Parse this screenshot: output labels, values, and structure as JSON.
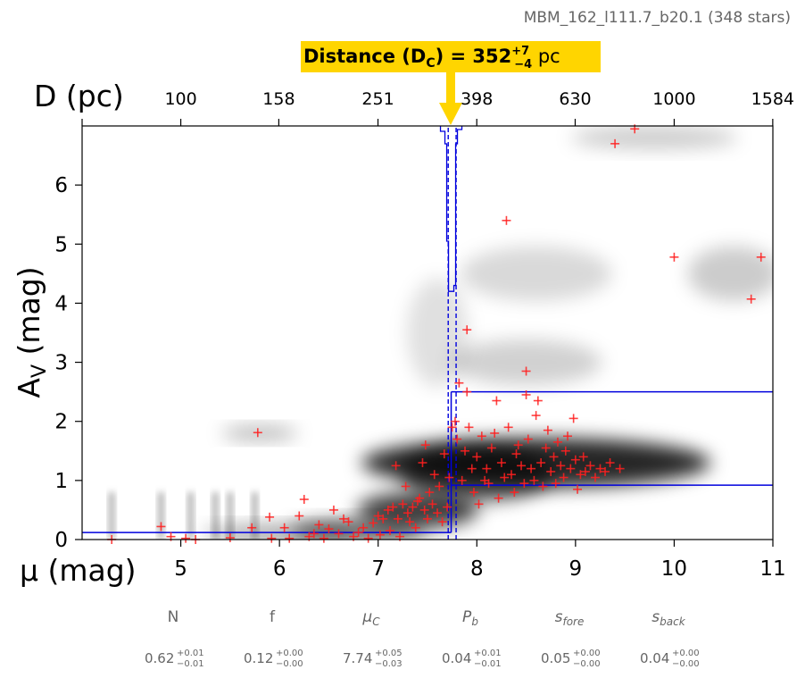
{
  "chart_data": {
    "type": "scatter",
    "title": "MBM_162_l111.7_b20.1 (348 stars)",
    "distance_label": "Distance (D",
    "distance_sub": "C",
    "distance_eq": ") = 352",
    "distance_sup": "+7",
    "distance_subscript": "−4",
    "distance_unit": " pc",
    "top_axis_label": "D (pc)",
    "top_ticks": [
      "100",
      "158",
      "251",
      "398",
      "630",
      "1000",
      "1584"
    ],
    "ylabel": "A",
    "ylabel_sub": "V",
    "ylabel_unit": " (mag)",
    "xlabel": "μ (mag)",
    "xlim": [
      4.0,
      11.0
    ],
    "ylim": [
      0,
      7.0
    ],
    "x_ticks": [
      "5",
      "6",
      "7",
      "8",
      "9",
      "10",
      "11"
    ],
    "y_ticks": [
      "0",
      "1",
      "2",
      "3",
      "4",
      "5",
      "6"
    ],
    "distance_modulus": 7.74,
    "distance_modulus_err": [
      7.71,
      7.79
    ],
    "foreground_extinction": 0.12,
    "background_extinction_low": 0.92,
    "background_extinction_high": 2.5,
    "colors": {
      "points": "#ff2020",
      "model": "#0000dd",
      "arrow": "#ffd500"
    },
    "parameters": [
      {
        "name": "N",
        "value": "0.62",
        "plus": "+0.01",
        "minus": "−0.01"
      },
      {
        "name": "f",
        "value": "0.12",
        "plus": "+0.00",
        "minus": "−0.00"
      },
      {
        "name": "μC",
        "value": "7.74",
        "plus": "+0.05",
        "minus": "−0.03"
      },
      {
        "name": "Pb",
        "value": "0.04",
        "plus": "+0.01",
        "minus": "−0.01"
      },
      {
        "name": "sfore",
        "value": "0.05",
        "plus": "+0.00",
        "minus": "−0.00"
      },
      {
        "name": "sback",
        "value": "0.04",
        "plus": "+0.00",
        "minus": "−0.00"
      }
    ],
    "points": [
      [
        4.3,
        0.0
      ],
      [
        4.8,
        0.22
      ],
      [
        4.9,
        0.05
      ],
      [
        5.05,
        0.02
      ],
      [
        5.15,
        0.0
      ],
      [
        5.5,
        0.03
      ],
      [
        5.72,
        0.2
      ],
      [
        5.78,
        1.81
      ],
      [
        5.9,
        0.38
      ],
      [
        5.92,
        0.02
      ],
      [
        6.05,
        0.2
      ],
      [
        6.1,
        0.02
      ],
      [
        6.2,
        0.4
      ],
      [
        6.25,
        0.68
      ],
      [
        6.3,
        0.05
      ],
      [
        6.35,
        0.1
      ],
      [
        6.4,
        0.25
      ],
      [
        6.45,
        0.02
      ],
      [
        6.5,
        0.18
      ],
      [
        6.55,
        0.5
      ],
      [
        6.6,
        0.1
      ],
      [
        6.65,
        0.35
      ],
      [
        6.7,
        0.3
      ],
      [
        6.75,
        0.05
      ],
      [
        6.8,
        0.12
      ],
      [
        6.85,
        0.2
      ],
      [
        6.9,
        0.02
      ],
      [
        6.95,
        0.28
      ],
      [
        7.0,
        0.4
      ],
      [
        7.02,
        0.08
      ],
      [
        7.05,
        0.35
      ],
      [
        7.1,
        0.5
      ],
      [
        7.12,
        0.15
      ],
      [
        7.15,
        0.55
      ],
      [
        7.18,
        1.25
      ],
      [
        7.2,
        0.35
      ],
      [
        7.22,
        0.05
      ],
      [
        7.25,
        0.6
      ],
      [
        7.28,
        0.9
      ],
      [
        7.3,
        0.45
      ],
      [
        7.32,
        0.3
      ],
      [
        7.35,
        0.55
      ],
      [
        7.38,
        0.2
      ],
      [
        7.4,
        0.65
      ],
      [
        7.42,
        0.7
      ],
      [
        7.45,
        1.3
      ],
      [
        7.47,
        0.5
      ],
      [
        7.48,
        1.6
      ],
      [
        7.5,
        0.35
      ],
      [
        7.52,
        0.8
      ],
      [
        7.55,
        0.6
      ],
      [
        7.57,
        1.1
      ],
      [
        7.6,
        0.45
      ],
      [
        7.62,
        0.9
      ],
      [
        7.65,
        0.3
      ],
      [
        7.67,
        1.45
      ],
      [
        7.7,
        0.55
      ],
      [
        7.72,
        1.05
      ],
      [
        7.75,
        1.9
      ],
      [
        7.78,
        2.0
      ],
      [
        7.8,
        1.7
      ],
      [
        7.82,
        2.65
      ],
      [
        7.85,
        1.0
      ],
      [
        7.88,
        1.5
      ],
      [
        7.9,
        3.55
      ],
      [
        7.9,
        2.5
      ],
      [
        7.92,
        1.9
      ],
      [
        7.95,
        1.2
      ],
      [
        7.97,
        0.8
      ],
      [
        8.0,
        1.4
      ],
      [
        8.02,
        0.6
      ],
      [
        8.05,
        1.75
      ],
      [
        8.08,
        1.0
      ],
      [
        8.1,
        1.2
      ],
      [
        8.12,
        0.95
      ],
      [
        8.15,
        1.55
      ],
      [
        8.18,
        1.8
      ],
      [
        8.2,
        2.35
      ],
      [
        8.22,
        0.7
      ],
      [
        8.25,
        1.3
      ],
      [
        8.28,
        1.05
      ],
      [
        8.3,
        5.4
      ],
      [
        8.32,
        1.9
      ],
      [
        8.35,
        1.1
      ],
      [
        8.38,
        0.8
      ],
      [
        8.4,
        1.45
      ],
      [
        8.42,
        1.6
      ],
      [
        8.45,
        1.25
      ],
      [
        8.48,
        0.95
      ],
      [
        8.5,
        2.85
      ],
      [
        8.5,
        2.45
      ],
      [
        8.52,
        1.7
      ],
      [
        8.55,
        1.2
      ],
      [
        8.58,
        1.0
      ],
      [
        8.6,
        2.1
      ],
      [
        8.62,
        2.35
      ],
      [
        8.65,
        1.3
      ],
      [
        8.67,
        0.9
      ],
      [
        8.7,
        1.55
      ],
      [
        8.72,
        1.85
      ],
      [
        8.75,
        1.15
      ],
      [
        8.78,
        1.4
      ],
      [
        8.8,
        0.95
      ],
      [
        8.82,
        1.65
      ],
      [
        8.85,
        1.25
      ],
      [
        8.88,
        1.05
      ],
      [
        8.9,
        1.5
      ],
      [
        8.92,
        1.75
      ],
      [
        8.95,
        1.2
      ],
      [
        8.98,
        2.05
      ],
      [
        9.0,
        1.35
      ],
      [
        9.02,
        0.85
      ],
      [
        9.05,
        1.1
      ],
      [
        9.08,
        1.4
      ],
      [
        9.1,
        1.15
      ],
      [
        9.15,
        1.25
      ],
      [
        9.2,
        1.05
      ],
      [
        9.25,
        1.2
      ],
      [
        9.3,
        1.15
      ],
      [
        9.35,
        1.3
      ],
      [
        9.4,
        6.7
      ],
      [
        9.45,
        1.2
      ],
      [
        9.6,
        6.95
      ],
      [
        10.0,
        4.78
      ],
      [
        10.78,
        4.07
      ],
      [
        10.88,
        4.78
      ]
    ]
  }
}
